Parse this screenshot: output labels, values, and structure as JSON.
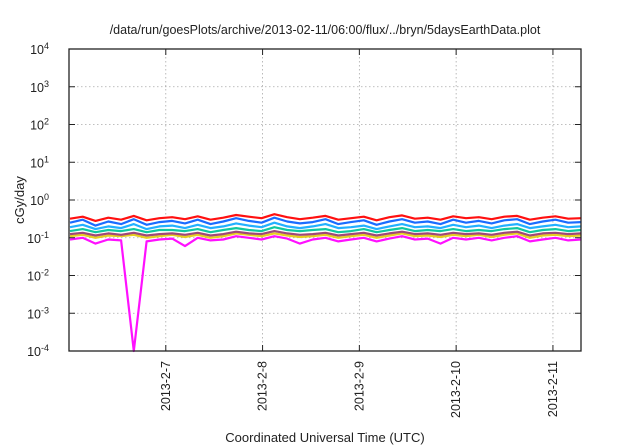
{
  "chart_data": {
    "type": "line",
    "title": "/data/run/goesPlots/archive/2013-02-11/06:00/flux/../bryn/5daysEarthData.plot",
    "xlabel": "Coordinated Universal Time (UTC)",
    "ylabel": "cGy/day",
    "x_units": "days since 2013-02-06 00:00 UTC",
    "xlim": [
      0,
      5.29
    ],
    "ylim": [
      0.0001,
      10000
    ],
    "yscale": "log",
    "grid": true,
    "legend": "none",
    "x_ticks": [
      {
        "value": 1,
        "label": "2013-2-7"
      },
      {
        "value": 2,
        "label": "2013-2-8"
      },
      {
        "value": 3,
        "label": "2013-2-9"
      },
      {
        "value": 4,
        "label": "2013-2-10"
      },
      {
        "value": 5,
        "label": "2013-2-11"
      }
    ],
    "y_ticks": [
      {
        "value": 0.0001,
        "base": "10",
        "exp": "-4"
      },
      {
        "value": 0.001,
        "base": "10",
        "exp": "-3"
      },
      {
        "value": 0.01,
        "base": "10",
        "exp": "-2"
      },
      {
        "value": 0.1,
        "base": "10",
        "exp": "-1"
      },
      {
        "value": 1,
        "base": "10",
        "exp": "0"
      },
      {
        "value": 10,
        "base": "10",
        "exp": "1"
      },
      {
        "value": 100,
        "base": "10",
        "exp": "2"
      },
      {
        "value": 1000,
        "base": "10",
        "exp": "3"
      },
      {
        "value": 10000,
        "base": "10",
        "exp": "4"
      }
    ],
    "x": [
      0.01,
      0.142,
      0.274,
      0.406,
      0.538,
      0.67,
      0.802,
      0.934,
      1.066,
      1.198,
      1.33,
      1.462,
      1.594,
      1.726,
      1.858,
      1.99,
      2.122,
      2.254,
      2.386,
      2.518,
      2.65,
      2.782,
      2.914,
      3.046,
      3.178,
      3.31,
      3.442,
      3.574,
      3.706,
      3.838,
      3.97,
      4.102,
      4.234,
      4.366,
      4.498,
      4.63,
      4.762,
      4.894,
      5.026,
      5.158,
      5.29
    ],
    "series": [
      {
        "name": "red",
        "color": "#ff1010",
        "values": [
          0.32,
          0.36,
          0.28,
          0.34,
          0.3,
          0.38,
          0.29,
          0.33,
          0.35,
          0.31,
          0.37,
          0.3,
          0.34,
          0.4,
          0.36,
          0.33,
          0.42,
          0.35,
          0.31,
          0.34,
          0.38,
          0.3,
          0.33,
          0.36,
          0.29,
          0.35,
          0.39,
          0.32,
          0.34,
          0.3,
          0.37,
          0.33,
          0.35,
          0.31,
          0.36,
          0.38,
          0.3,
          0.34,
          0.37,
          0.32,
          0.33
        ]
      },
      {
        "name": "blue",
        "color": "#1a6cff",
        "values": [
          0.25,
          0.3,
          0.21,
          0.27,
          0.23,
          0.31,
          0.22,
          0.26,
          0.28,
          0.24,
          0.3,
          0.23,
          0.27,
          0.33,
          0.28,
          0.25,
          0.34,
          0.27,
          0.24,
          0.26,
          0.31,
          0.23,
          0.26,
          0.29,
          0.22,
          0.27,
          0.31,
          0.25,
          0.27,
          0.23,
          0.3,
          0.25,
          0.28,
          0.24,
          0.29,
          0.31,
          0.23,
          0.27,
          0.3,
          0.25,
          0.26
        ]
      },
      {
        "name": "light-blue",
        "color": "#22b0ff",
        "values": [
          0.19,
          0.22,
          0.17,
          0.2,
          0.18,
          0.23,
          0.17,
          0.2,
          0.21,
          0.18,
          0.22,
          0.18,
          0.2,
          0.24,
          0.21,
          0.19,
          0.25,
          0.2,
          0.18,
          0.2,
          0.23,
          0.18,
          0.19,
          0.21,
          0.17,
          0.2,
          0.23,
          0.19,
          0.2,
          0.18,
          0.22,
          0.19,
          0.21,
          0.18,
          0.21,
          0.23,
          0.18,
          0.2,
          0.22,
          0.19,
          0.2
        ]
      },
      {
        "name": "teal",
        "color": "#10c8a0",
        "values": [
          0.15,
          0.17,
          0.14,
          0.16,
          0.15,
          0.17,
          0.14,
          0.16,
          0.16,
          0.15,
          0.17,
          0.14,
          0.16,
          0.18,
          0.16,
          0.15,
          0.19,
          0.16,
          0.15,
          0.16,
          0.17,
          0.14,
          0.15,
          0.17,
          0.14,
          0.16,
          0.18,
          0.15,
          0.16,
          0.15,
          0.17,
          0.15,
          0.16,
          0.15,
          0.17,
          0.18,
          0.14,
          0.16,
          0.17,
          0.15,
          0.16
        ]
      },
      {
        "name": "yellow",
        "color": "#e8d020",
        "values": [
          0.11,
          0.12,
          0.1,
          0.115,
          0.11,
          0.12,
          0.1,
          0.11,
          0.12,
          0.105,
          0.12,
          0.1,
          0.11,
          0.13,
          0.12,
          0.11,
          0.13,
          0.115,
          0.105,
          0.11,
          0.12,
          0.1,
          0.11,
          0.12,
          0.1,
          0.115,
          0.13,
          0.11,
          0.115,
          0.105,
          0.12,
          0.11,
          0.12,
          0.105,
          0.12,
          0.13,
          0.1,
          0.115,
          0.12,
          0.11,
          0.115
        ]
      },
      {
        "name": "purple",
        "color": "#a04878",
        "values": [
          0.125,
          0.135,
          0.115,
          0.13,
          0.12,
          0.135,
          0.115,
          0.125,
          0.13,
          0.12,
          0.135,
          0.115,
          0.125,
          0.145,
          0.13,
          0.125,
          0.15,
          0.13,
          0.12,
          0.125,
          0.135,
          0.115,
          0.125,
          0.135,
          0.115,
          0.13,
          0.145,
          0.125,
          0.13,
          0.12,
          0.135,
          0.125,
          0.13,
          0.12,
          0.135,
          0.145,
          0.115,
          0.13,
          0.135,
          0.125,
          0.13
        ]
      },
      {
        "name": "magenta",
        "color": "#ff10ff",
        "values": [
          0.09,
          0.1,
          0.07,
          0.09,
          0.085,
          0.0001,
          0.08,
          0.09,
          0.095,
          0.06,
          0.1,
          0.085,
          0.09,
          0.11,
          0.1,
          0.09,
          0.11,
          0.095,
          0.07,
          0.09,
          0.1,
          0.08,
          0.09,
          0.1,
          0.08,
          0.095,
          0.11,
          0.09,
          0.095,
          0.07,
          0.1,
          0.09,
          0.1,
          0.085,
          0.1,
          0.11,
          0.08,
          0.09,
          0.1,
          0.085,
          0.09
        ]
      }
    ]
  }
}
